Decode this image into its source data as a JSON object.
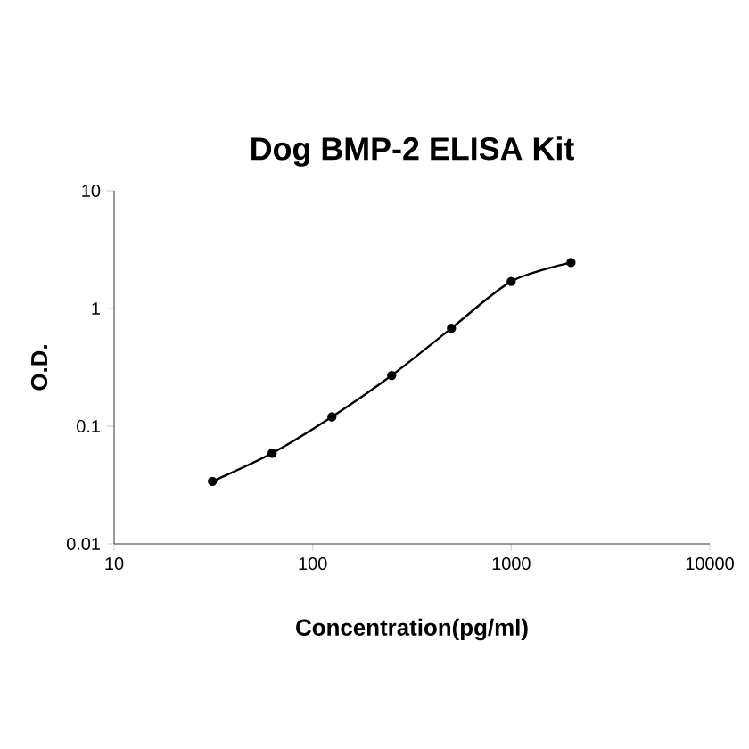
{
  "chart_data": {
    "type": "line",
    "title": "Dog BMP-2 ELISA Kit",
    "xlabel": "Concentration(pg/ml)",
    "ylabel": "O.D.",
    "x": [
      31.25,
      62.5,
      125,
      250,
      500,
      1000,
      2000
    ],
    "series": [
      {
        "color": "#000000",
        "values": [
          0.034,
          0.059,
          0.12,
          0.27,
          0.68,
          1.7,
          2.46
        ]
      }
    ],
    "log": "xy",
    "xlim": [
      10,
      10000
    ],
    "ylim": [
      0.01,
      10
    ],
    "xticks": [
      10,
      100,
      1000,
      10000
    ],
    "yticks": [
      0.01,
      0.1,
      1,
      10
    ],
    "marker": "circle",
    "line_style": "solid"
  }
}
